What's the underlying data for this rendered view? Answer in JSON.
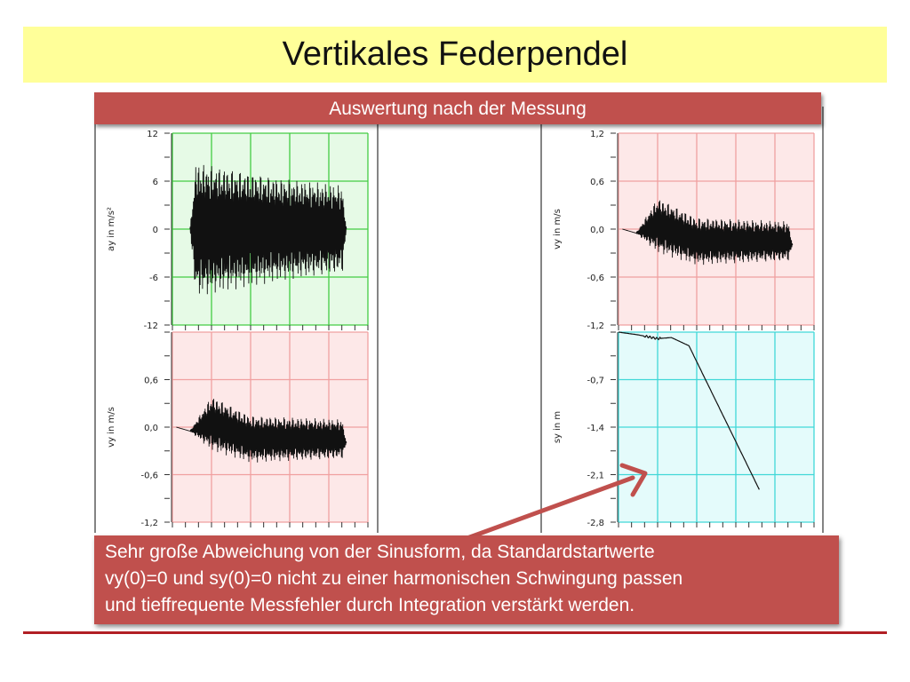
{
  "slide": {
    "title": "Vertikales Federpendel",
    "subtitle": "Auswertung nach der Messung",
    "note_lines": [
      "Sehr große Abweichung von der Sinusform, da Standardstartwerte",
      "vy(0)=0 und sy(0)=0 nicht zu einer harmonischen Schwingung passen",
      "und tieffrequente Messfehler durch Integration verstärkt werden."
    ],
    "colors": {
      "title_bg": "#ffff99",
      "accent": "#c0504d",
      "rule": "#b11f24"
    }
  },
  "chart_data": [
    {
      "id": "ay",
      "type": "line",
      "ylabel": "ay in m/s²",
      "yticks": [
        "12",
        "6",
        "0",
        "-6",
        "-12"
      ],
      "ylim": [
        -12,
        12
      ],
      "bg": "#e6fae6",
      "grid": "#44cc44",
      "trace": "oscillation",
      "series": [
        {
          "x": [
            0.09,
            0.12,
            0.55,
            0.87,
            0.89
          ],
          "y": [
            0,
            0,
            0,
            0,
            0
          ],
          "amplitude": [
            0,
            8.5,
            6.5,
            5.5,
            0
          ]
        }
      ]
    },
    {
      "id": "vy_left",
      "type": "line",
      "ylabel": "vy in m/s",
      "yticks": [
        "0,6",
        "0,0",
        "-0,6",
        "-1,2"
      ],
      "ylim": [
        -1.2,
        1.2
      ],
      "bg": "#fde8e8",
      "grid": "#f0a0a0",
      "trace": "oscillation",
      "series": [
        {
          "x": [
            0.02,
            0.09,
            0.2,
            0.4,
            0.87,
            0.89
          ],
          "y": [
            0,
            -0.05,
            0.05,
            -0.15,
            -0.15,
            -0.2
          ],
          "amplitude": [
            0,
            0,
            0.35,
            0.3,
            0.25,
            0
          ]
        }
      ]
    },
    {
      "id": "vy_right",
      "type": "line",
      "ylabel": "vy in m/s",
      "yticks": [
        "1,2",
        "0,6",
        "0,0",
        "-0,6",
        "-1,2"
      ],
      "ylim": [
        -1.2,
        1.2
      ],
      "bg": "#fde8e8",
      "grid": "#f0a0a0",
      "trace": "oscillation",
      "series": [
        {
          "x": [
            0.02,
            0.09,
            0.2,
            0.4,
            0.87,
            0.89
          ],
          "y": [
            0,
            -0.05,
            0.05,
            -0.15,
            -0.15,
            -0.2
          ],
          "amplitude": [
            0,
            0,
            0.35,
            0.3,
            0.25,
            0
          ]
        }
      ]
    },
    {
      "id": "sy",
      "type": "line",
      "ylabel": "sy in m",
      "yticks": [
        "-0,7",
        "-1,4",
        "-2,1",
        "-2,8"
      ],
      "ylim": [
        -3.5,
        0
      ],
      "bg": "#e4fbfb",
      "grid": "#40d8d8",
      "trace": "line",
      "series": [
        {
          "x": [
            0.0,
            0.1,
            0.2,
            0.27,
            0.36,
            0.72
          ],
          "y": [
            0,
            -0.05,
            -0.12,
            -0.1,
            -0.25,
            -2.9
          ],
          "amplitude": [
            0,
            0,
            0,
            0,
            0,
            0
          ]
        }
      ]
    }
  ]
}
